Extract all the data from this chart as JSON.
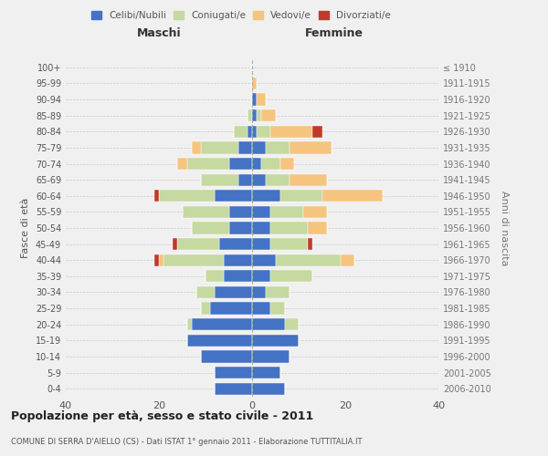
{
  "age_groups": [
    "0-4",
    "5-9",
    "10-14",
    "15-19",
    "20-24",
    "25-29",
    "30-34",
    "35-39",
    "40-44",
    "45-49",
    "50-54",
    "55-59",
    "60-64",
    "65-69",
    "70-74",
    "75-79",
    "80-84",
    "85-89",
    "90-94",
    "95-99",
    "100+"
  ],
  "birth_years": [
    "2006-2010",
    "2001-2005",
    "1996-2000",
    "1991-1995",
    "1986-1990",
    "1981-1985",
    "1976-1980",
    "1971-1975",
    "1966-1970",
    "1961-1965",
    "1956-1960",
    "1951-1955",
    "1946-1950",
    "1941-1945",
    "1936-1940",
    "1931-1935",
    "1926-1930",
    "1921-1925",
    "1916-1920",
    "1911-1915",
    "≤ 1910"
  ],
  "maschi": {
    "celibi": [
      8,
      8,
      11,
      14,
      13,
      9,
      8,
      6,
      6,
      7,
      5,
      5,
      8,
      3,
      5,
      3,
      1,
      0,
      0,
      0,
      0
    ],
    "coniugati": [
      0,
      0,
      0,
      0,
      1,
      2,
      4,
      4,
      13,
      9,
      8,
      10,
      12,
      8,
      9,
      8,
      3,
      1,
      0,
      0,
      0
    ],
    "vedovi": [
      0,
      0,
      0,
      0,
      0,
      0,
      0,
      0,
      1,
      0,
      0,
      0,
      0,
      0,
      2,
      2,
      0,
      0,
      0,
      0,
      0
    ],
    "divorziati": [
      0,
      0,
      0,
      0,
      0,
      0,
      0,
      0,
      1,
      1,
      0,
      0,
      1,
      0,
      0,
      0,
      0,
      0,
      0,
      0,
      0
    ]
  },
  "femmine": {
    "nubili": [
      7,
      6,
      8,
      10,
      7,
      4,
      3,
      4,
      5,
      4,
      4,
      4,
      6,
      3,
      2,
      3,
      1,
      1,
      1,
      0,
      0
    ],
    "coniugate": [
      0,
      0,
      0,
      0,
      3,
      3,
      5,
      9,
      14,
      8,
      8,
      7,
      9,
      5,
      4,
      5,
      3,
      1,
      0,
      0,
      0
    ],
    "vedove": [
      0,
      0,
      0,
      0,
      0,
      0,
      0,
      0,
      3,
      0,
      4,
      5,
      13,
      8,
      3,
      9,
      9,
      3,
      2,
      1,
      0
    ],
    "divorziate": [
      0,
      0,
      0,
      0,
      0,
      0,
      0,
      0,
      0,
      1,
      0,
      0,
      0,
      0,
      0,
      0,
      2,
      0,
      0,
      0,
      0
    ]
  },
  "colors": {
    "celibi_nubili": "#4472C4",
    "coniugati": "#c5d9a0",
    "vedovi": "#f5c47f",
    "divorziati": "#c0392b"
  },
  "title": "Popolazione per età, sesso e stato civile - 2011",
  "subtitle": "COMUNE DI SERRA D'AIELLO (CS) - Dati ISTAT 1° gennaio 2011 - Elaborazione TUTTITALIA.IT",
  "xlabel_left": "Maschi",
  "xlabel_right": "Femmine",
  "ylabel_left": "Fasce di età",
  "ylabel_right": "Anni di nascita",
  "xlim": 40,
  "legend_labels": [
    "Celibi/Nubili",
    "Coniugati/e",
    "Vedovi/e",
    "Divorziati/e"
  ],
  "background_color": "#f0f0f0"
}
